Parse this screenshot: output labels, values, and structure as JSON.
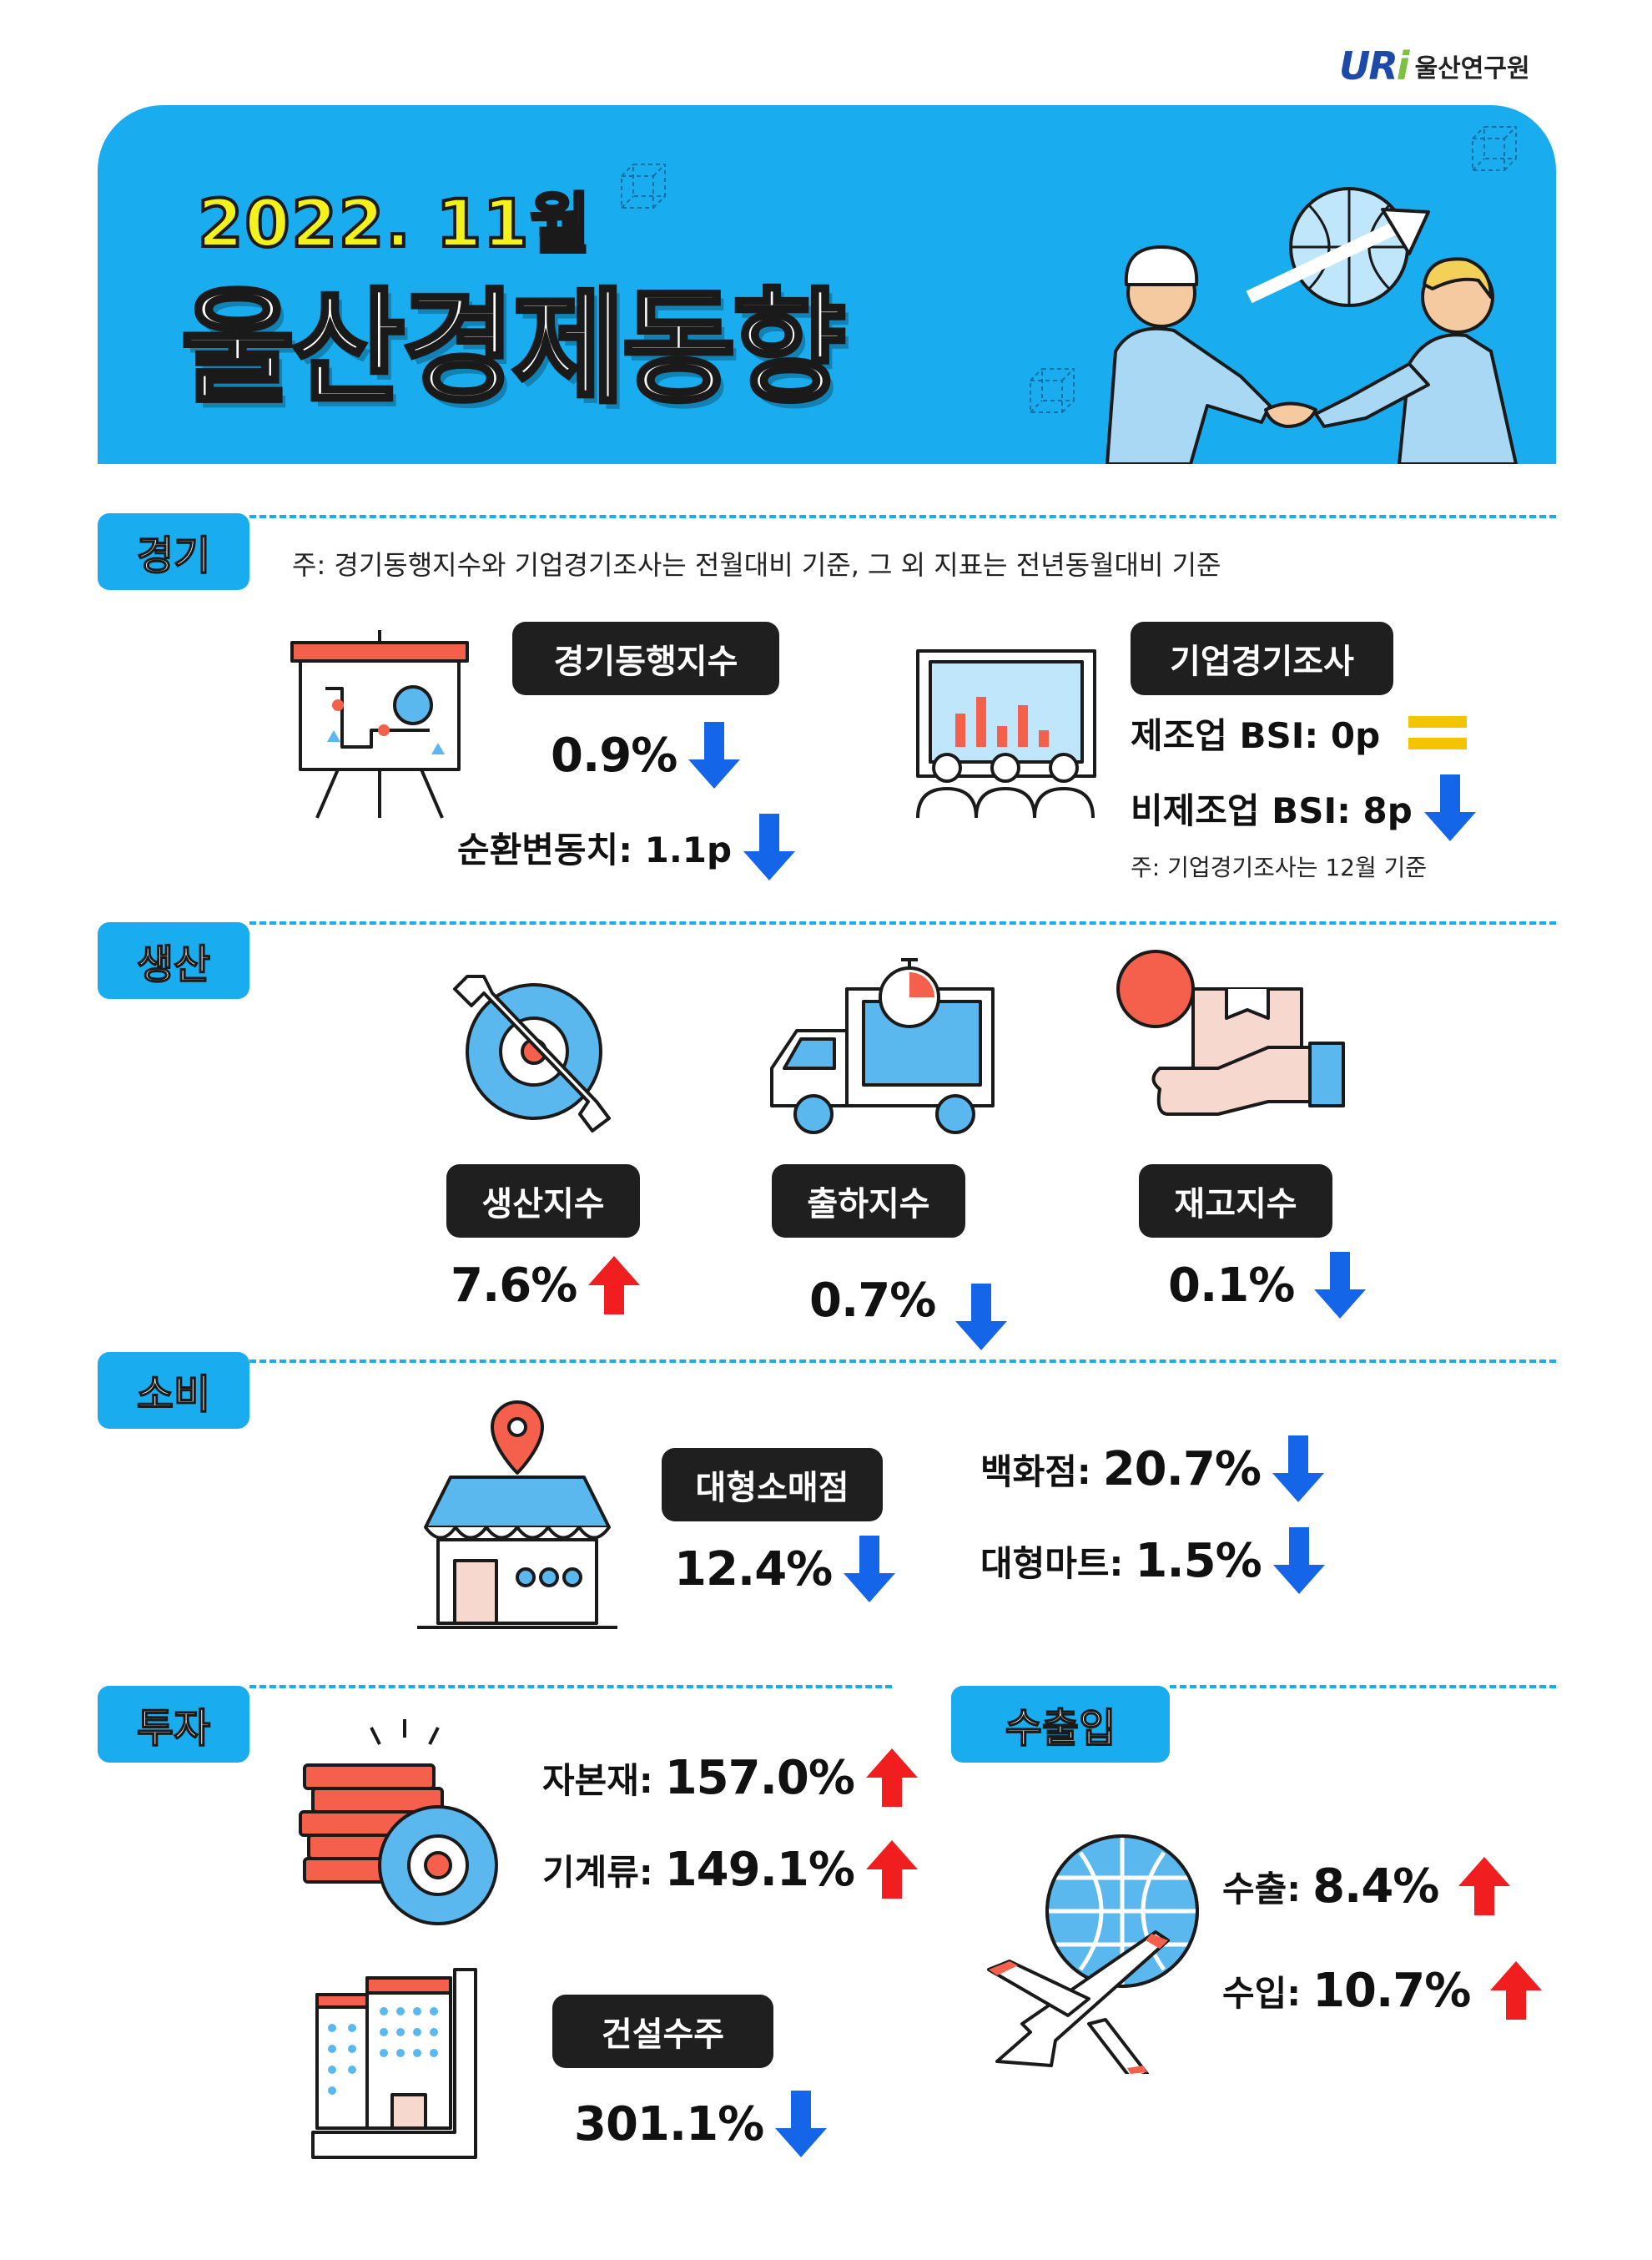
{
  "logo": {
    "mark": "URi",
    "name": "울산연구원"
  },
  "hero": {
    "year": "2022. 11월",
    "title": "울산경제동향"
  },
  "sections": {
    "economy": {
      "tag": "경기",
      "note": "주: 경기동행지수와 기업경기조사는 전월대비 기준, 그 외 지표는 전년동월대비 기준",
      "coincident": {
        "label": "경기동행지수",
        "value": "0.9%",
        "cyclical": "순환변동치: 1.1p"
      },
      "bsi": {
        "label": "기업경기조사",
        "manufacturing": "제조업 BSI: 0p",
        "non_manufacturing": "비제조업 BSI: 8p",
        "note": "주: 기업경기조사는 12월 기준"
      }
    },
    "production": {
      "tag": "생산",
      "items": [
        {
          "label": "생산지수",
          "value": "7.6%"
        },
        {
          "label": "출하지수",
          "value": "0.7%"
        },
        {
          "label": "재고지수",
          "value": "0.1%"
        }
      ]
    },
    "consumption": {
      "tag": "소비",
      "label": "대형소매점",
      "value": "12.4%",
      "dept_label": "백화점:",
      "dept_value": "20.7%",
      "mart_label": "대형마트:",
      "mart_value": "1.5%"
    },
    "investment": {
      "tag": "투자",
      "capital_label": "자본재:",
      "capital_value": "157.0%",
      "machinery_label": "기계류:",
      "machinery_value": "149.1%",
      "construction_label": "건설수주",
      "construction_value": "301.1%"
    },
    "trade": {
      "tag": "수출입",
      "export_label": "수출:",
      "export_value": "8.4%",
      "import_label": "수입:",
      "import_value": "10.7%"
    }
  },
  "colors": {
    "accent": "#19adef",
    "up": "#f01e1e",
    "down": "#1565e8",
    "flat": "#f5c400",
    "hero_year": "#f4f21c"
  },
  "icons": [
    "up-arrow-icon",
    "down-arrow-icon",
    "equal-icon"
  ]
}
